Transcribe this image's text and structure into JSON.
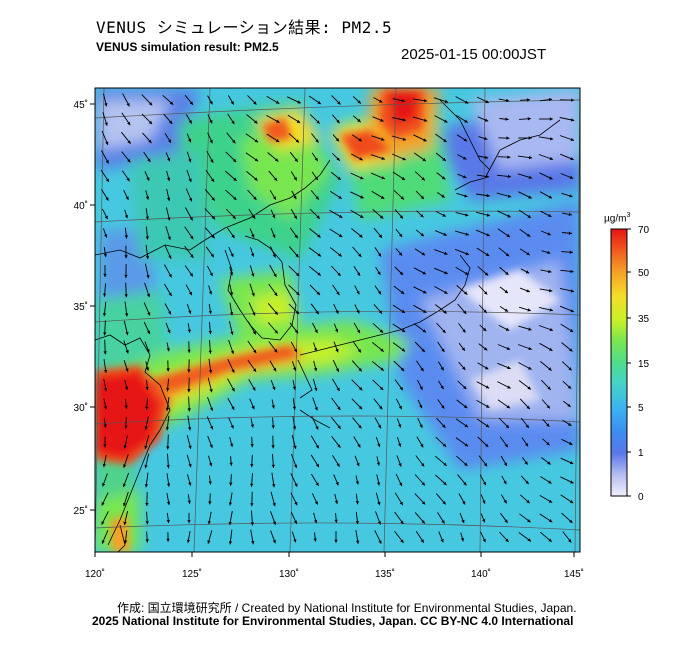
{
  "header": {
    "title_ja": "VENUS シミュレーション結果: PM2.5",
    "title_en": "VENUS simulation result: PM2.5",
    "datetime": "2025-01-15 00:00JST"
  },
  "map": {
    "lat_ticks": [
      "45˚",
      "40˚",
      "35˚",
      "30˚",
      "25˚"
    ],
    "lon_ticks": [
      "120˚",
      "125˚",
      "130˚",
      "135˚",
      "140˚",
      "145˚"
    ]
  },
  "colorbar": {
    "unit": "µg/m",
    "unit_exp": "3",
    "ticks": [
      "70",
      "50",
      "35",
      "15",
      "5",
      "1",
      "0"
    ],
    "colors": [
      "#f0f0fa",
      "#a8b4f0",
      "#5a78e8",
      "#3c96f0",
      "#46c8e6",
      "#46dcaa",
      "#78e65a",
      "#c8f032",
      "#f5dc28",
      "#f59628",
      "#f04b1e",
      "#e61414"
    ]
  },
  "footer": {
    "credit_line1": "作成: 国立環境研究所 / Created by National Institute for Environmental Studies, Japan.",
    "credit_line2": "2025 National Institute for Environmental Studies, Japan. CC BY-NC 4.0 International"
  }
}
